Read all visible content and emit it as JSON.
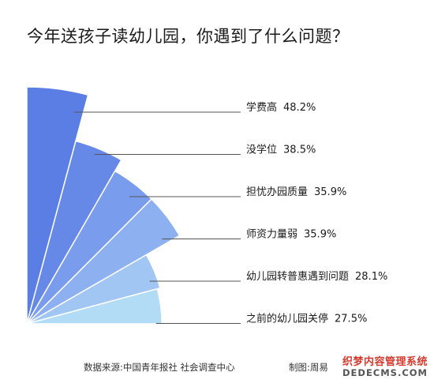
{
  "chart_data": {
    "type": "bar",
    "title": "今年送孩子读幼儿园，你遇到了什么问题？",
    "categories": [
      "学费高",
      "没学位",
      "担忧办园质量",
      "师资力量弱",
      "幼儿园转普惠遇到问题",
      "之前的幼儿园关停"
    ],
    "values": [
      48.2,
      38.5,
      35.9,
      35.9,
      28.1,
      27.5
    ],
    "value_labels": [
      "48.2%",
      "38.5%",
      "35.9%",
      "35.9%",
      "28.1%",
      "27.5%"
    ],
    "unit": "%",
    "colors": [
      "#5a7ee3",
      "#6689e8",
      "#7a9ced",
      "#8cb0f0",
      "#a1c6f3",
      "#b2dcf6"
    ]
  },
  "footer": {
    "source": "数据来源:中国青年报社 社会调查中心",
    "credit": "制图:周易"
  },
  "watermark": {
    "line1": "织梦内容管理系统",
    "line2": "DEDECMS.COM"
  }
}
